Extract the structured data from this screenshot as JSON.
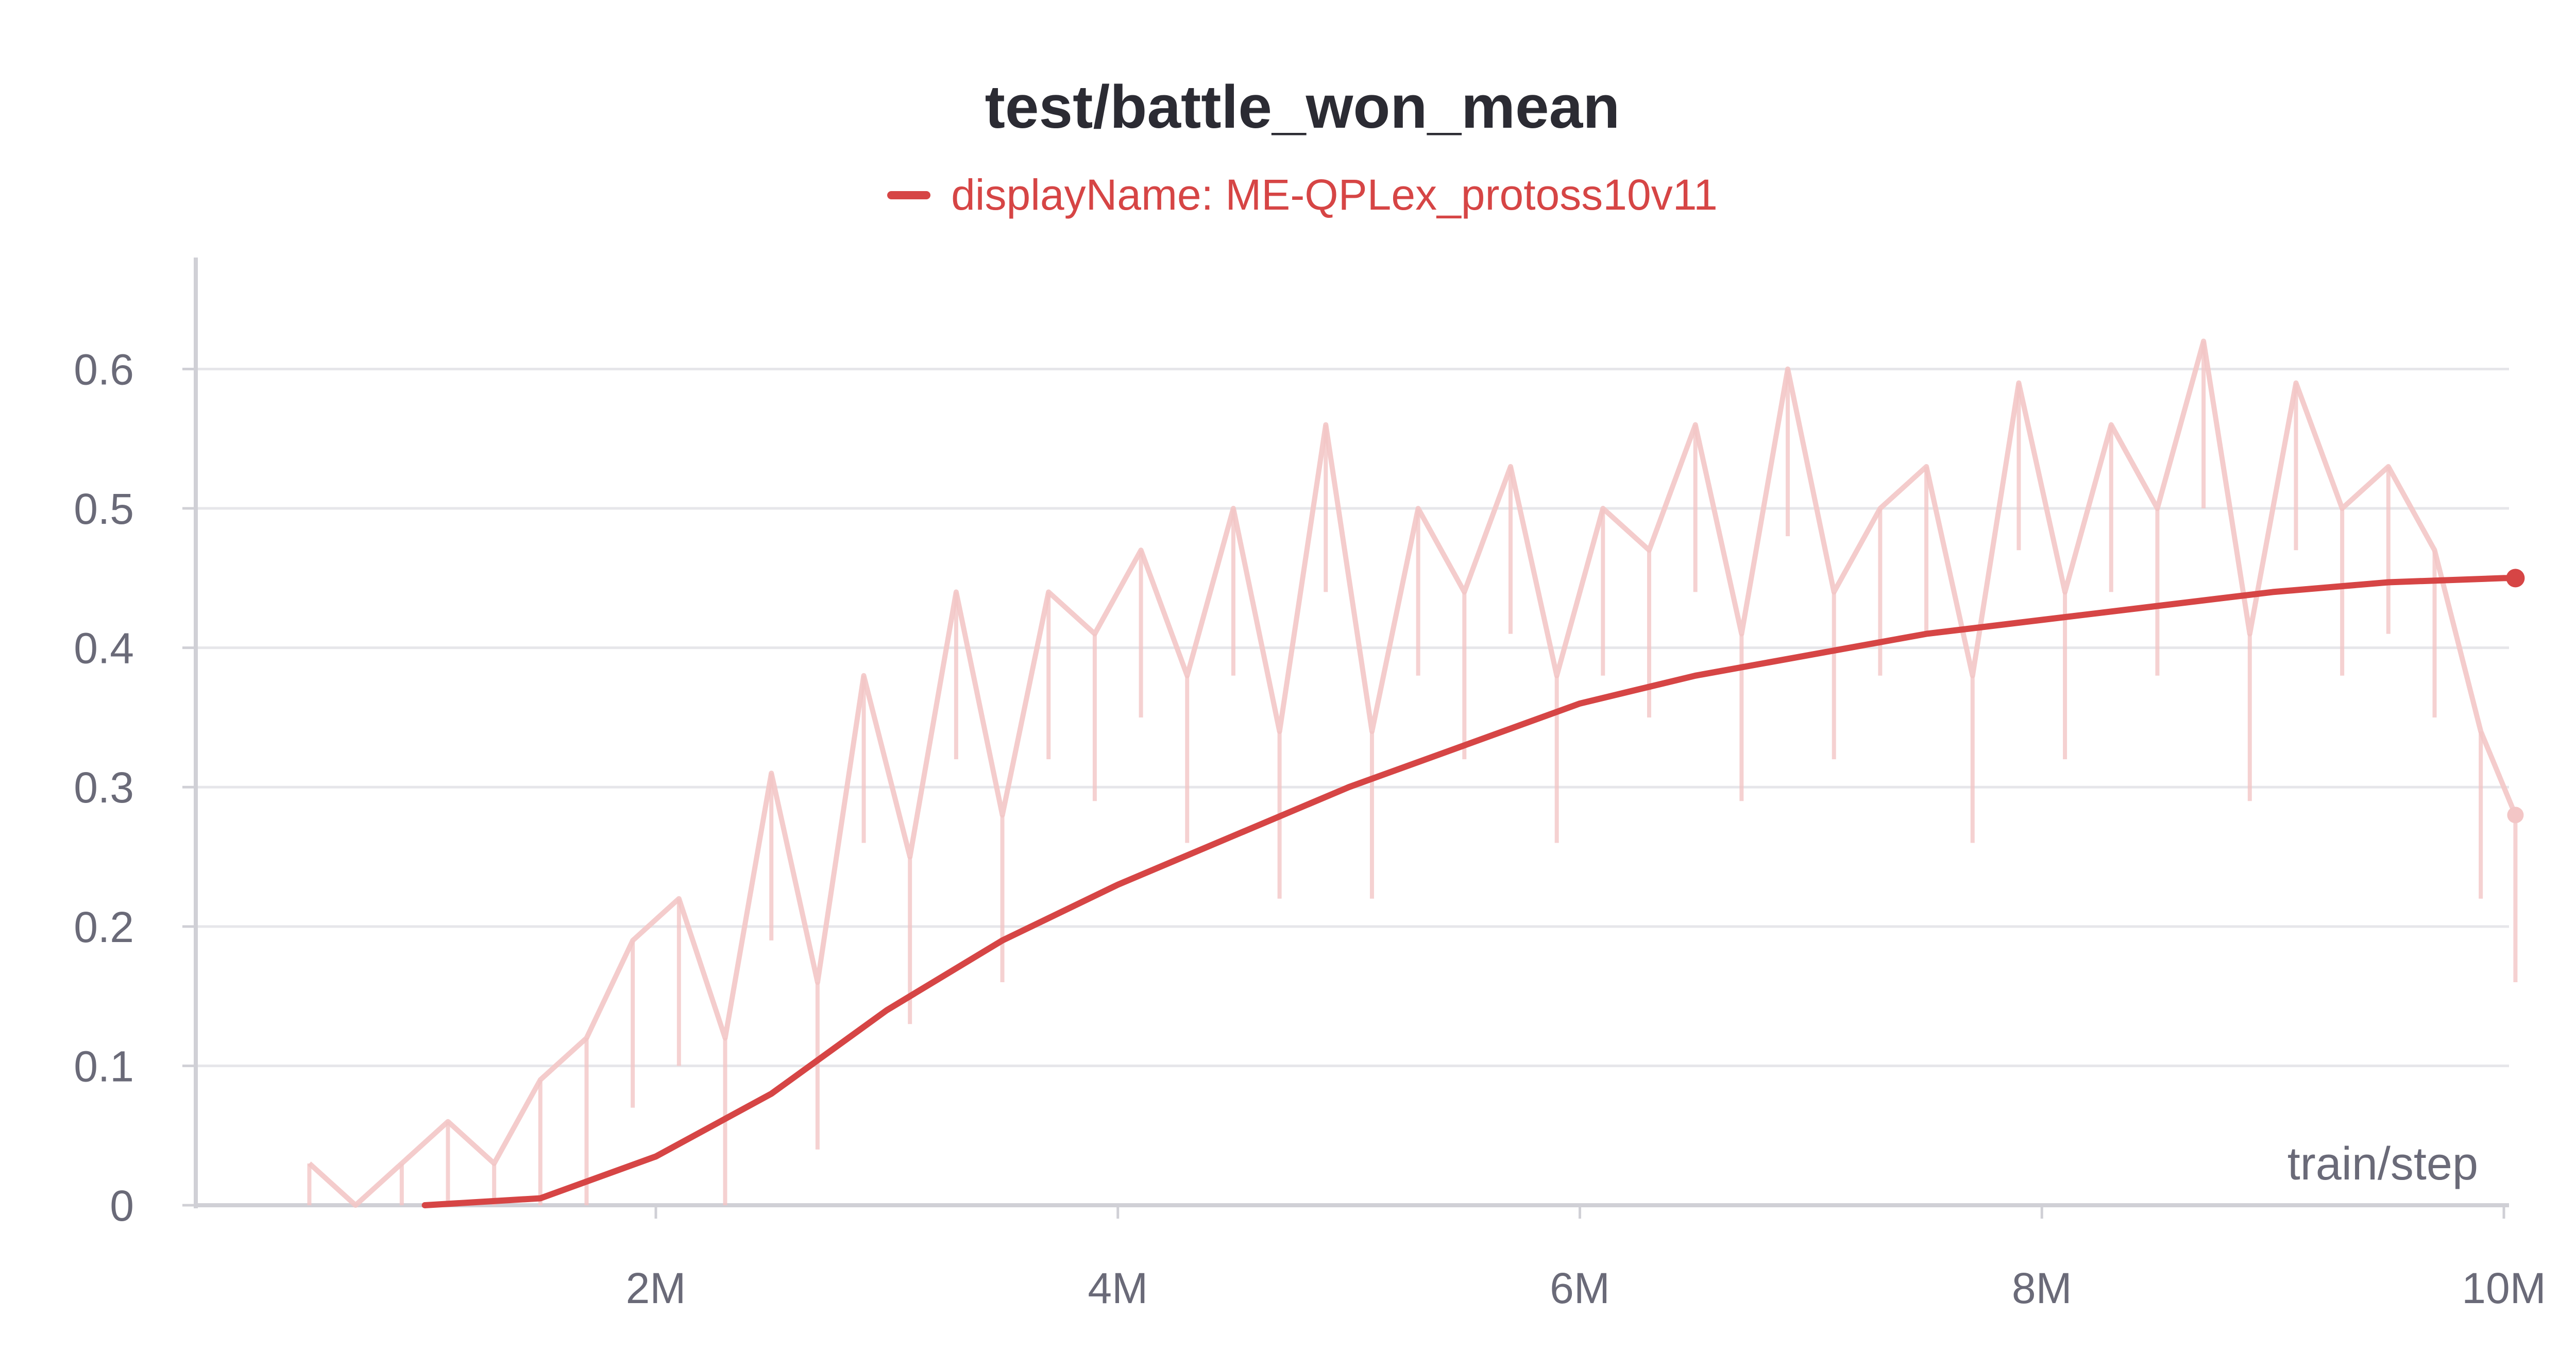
{
  "chart_data": {
    "type": "line",
    "title": "test/battle_won_mean",
    "xlabel": "train/step",
    "ylabel": "",
    "legend": {
      "position": "top-center",
      "entries": [
        {
          "label": "displayName: ME-QPLex_protoss10v11",
          "color": "#d64545"
        }
      ]
    },
    "xlim": [
      0,
      10050000
    ],
    "ylim": [
      0,
      0.68
    ],
    "x_ticks": [
      {
        "value": 2000000,
        "label": "2M"
      },
      {
        "value": 4000000,
        "label": "4M"
      },
      {
        "value": 6000000,
        "label": "6M"
      },
      {
        "value": 8000000,
        "label": "8M"
      },
      {
        "value": 10000000,
        "label": "10M"
      }
    ],
    "y_ticks": [
      {
        "value": 0,
        "label": "0"
      },
      {
        "value": 0.1,
        "label": "0.1"
      },
      {
        "value": 0.2,
        "label": "0.2"
      },
      {
        "value": 0.3,
        "label": "0.3"
      },
      {
        "value": 0.4,
        "label": "0.4"
      },
      {
        "value": 0.5,
        "label": "0.5"
      },
      {
        "value": 0.6,
        "label": "0.6"
      }
    ],
    "grid": true,
    "series": [
      {
        "role": "smoothed",
        "color": "#d64545",
        "x": [
          1000000,
          1500000,
          2000000,
          2500000,
          3000000,
          3500000,
          4000000,
          4500000,
          5000000,
          5500000,
          6000000,
          6500000,
          7000000,
          7500000,
          8000000,
          8500000,
          9000000,
          9500000,
          10000000,
          10050000
        ],
        "y": [
          0,
          0.005,
          0.035,
          0.08,
          0.14,
          0.19,
          0.23,
          0.265,
          0.3,
          0.33,
          0.36,
          0.38,
          0.395,
          0.41,
          0.42,
          0.43,
          0.44,
          0.447,
          0.45,
          0.45
        ]
      },
      {
        "role": "raw",
        "color": "#f3c6c6",
        "x": [
          500000,
          700000,
          900000,
          1100000,
          1300000,
          1500000,
          1700000,
          1900000,
          2100000,
          2300000,
          2500000,
          2700000,
          2900000,
          3100000,
          3300000,
          3500000,
          3700000,
          3900000,
          4100000,
          4300000,
          4500000,
          4700000,
          4900000,
          5100000,
          5300000,
          5500000,
          5700000,
          5900000,
          6100000,
          6300000,
          6500000,
          6700000,
          6900000,
          7100000,
          7300000,
          7500000,
          7700000,
          7900000,
          8100000,
          8300000,
          8500000,
          8700000,
          8900000,
          9100000,
          9300000,
          9500000,
          9700000,
          9900000,
          10050000
        ],
        "y": [
          0.03,
          0,
          0.03,
          0.06,
          0.03,
          0.09,
          0.12,
          0.19,
          0.22,
          0.12,
          0.31,
          0.16,
          0.38,
          0.25,
          0.44,
          0.28,
          0.44,
          0.41,
          0.47,
          0.38,
          0.5,
          0.34,
          0.56,
          0.34,
          0.5,
          0.44,
          0.53,
          0.38,
          0.5,
          0.47,
          0.56,
          0.41,
          0.6,
          0.44,
          0.5,
          0.53,
          0.38,
          0.59,
          0.44,
          0.56,
          0.5,
          0.62,
          0.41,
          0.59,
          0.5,
          0.53,
          0.47,
          0.34,
          0.28
        ]
      }
    ]
  }
}
